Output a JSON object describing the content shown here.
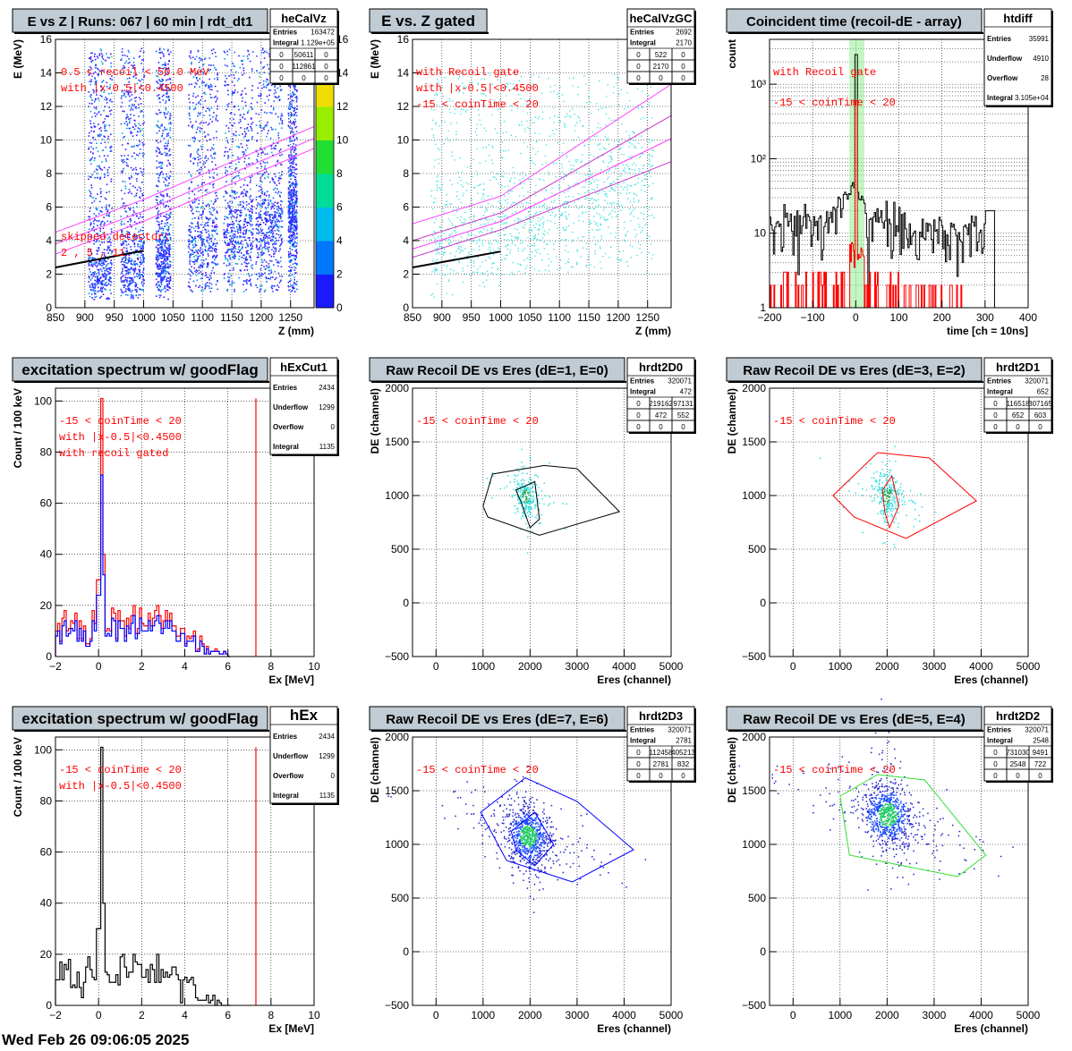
{
  "footer": "Wed Feb 26 09:06:05 2025",
  "colors": {
    "red": "#ff0000",
    "blue": "#0000ff",
    "black": "#000000",
    "magenta": "#ff00ff",
    "green": "#00cc00",
    "title_bg": "#c0cbd3"
  },
  "chart_data": [
    {
      "id": "heCalVz",
      "type": "heatmap",
      "title": "E vs Z | Runs: 067 | 60 min | rdt_dt1",
      "stats_name": "heCalVz",
      "stats": [
        [
          "Entries",
          "163472"
        ],
        [
          "Integral",
          "1.129e+05"
        ]
      ],
      "stats_grid": [
        [
          "0",
          "50611",
          "0"
        ],
        [
          "0",
          "112861",
          "0"
        ],
        [
          "0",
          "0",
          "0"
        ]
      ],
      "xlabel": "Z (mm)",
      "ylabel": "E (MeV)",
      "xlim": [
        850,
        1290
      ],
      "ylim": [
        0,
        16
      ],
      "xticks": [
        850,
        900,
        950,
        1000,
        1050,
        1100,
        1150,
        1200,
        1250
      ],
      "yticks": [
        0,
        2,
        4,
        6,
        8,
        10,
        12,
        14,
        16
      ],
      "colorbar": {
        "min": 0,
        "max": 16,
        "ticks": [
          0,
          2,
          4,
          6,
          8,
          10,
          12,
          14,
          16
        ]
      },
      "annotations": [
        "0.5 < recoil < 50.0 MeV",
        "with |x-0.5|<0.4500",
        "skipped detector:",
        "2 , 5 , 11"
      ],
      "detector_bands": [
        [
          905,
          945
        ],
        [
          960,
          1000
        ],
        [
          1020,
          1045
        ],
        [
          1075,
          1125
        ],
        [
          1135,
          1185
        ],
        [
          1190,
          1235
        ],
        [
          1245,
          1260
        ]
      ]
    },
    {
      "id": "heCalVzGC",
      "type": "scatter",
      "title": "E vs. Z gated",
      "stats_name": "heCalVzGC",
      "stats": [
        [
          "Entries",
          "2692"
        ],
        [
          "Integral",
          "2170"
        ]
      ],
      "stats_grid": [
        [
          "0",
          "522",
          "0"
        ],
        [
          "0",
          "2170",
          "0"
        ],
        [
          "0",
          "0",
          "0"
        ]
      ],
      "xlabel": "Z (mm)",
      "ylabel": "E (MeV)",
      "xlim": [
        850,
        1290
      ],
      "ylim": [
        0,
        16
      ],
      "xticks": [
        850,
        900,
        950,
        1000,
        1050,
        1100,
        1150,
        1200,
        1250
      ],
      "yticks": [
        0,
        2,
        4,
        6,
        8,
        10,
        12,
        14,
        16
      ],
      "annotations": [
        "with Recoil gate",
        "with |x-0.5|<0.4500",
        "-15 < coinTime < 20"
      ]
    },
    {
      "id": "htdiff",
      "type": "line",
      "title": "Coincident time (recoil-dE - array)",
      "stats_name": "htdiff",
      "stats": [
        [
          "Entries",
          "35991"
        ],
        [
          "Underflow",
          "4910"
        ],
        [
          "Overflow",
          "28"
        ],
        [
          "Integral",
          "3.105e+04"
        ]
      ],
      "xlabel": "time [ch = 10ns]",
      "ylabel": "count",
      "xlim": [
        -200,
        400
      ],
      "ylim": [
        1,
        4000
      ],
      "ylog": true,
      "xticks": [
        -200,
        -100,
        0,
        100,
        200,
        300,
        400
      ],
      "yticks": [
        1,
        10,
        100,
        1000
      ],
      "ytick_labels": [
        "1",
        "10",
        "10²",
        "10³"
      ],
      "gate": [
        -15,
        20
      ],
      "annotations": [
        "with Recoil gate",
        "-15 < coinTime < 20"
      ]
    },
    {
      "id": "hExCut1",
      "type": "bar",
      "title": "excitation spectrum w/ goodFlag",
      "stats_name": "hExCut1",
      "stats": [
        [
          "Entries",
          "2434"
        ],
        [
          "Underflow",
          "1299"
        ],
        [
          "Overflow",
          "0"
        ],
        [
          "Integral",
          "1135"
        ]
      ],
      "xlabel": "Ex [MeV]",
      "ylabel": "Count / 100 keV",
      "xlim": [
        -2,
        10
      ],
      "ylim": [
        0,
        105
      ],
      "xticks": [
        -2,
        0,
        2,
        4,
        6,
        8,
        10
      ],
      "yticks": [
        0,
        20,
        40,
        60,
        80,
        100
      ],
      "marker_x": 7.3,
      "annotations": [
        "-15 < coinTime < 20",
        "with |x-0.5|<0.4500",
        "with recoil gated"
      ]
    },
    {
      "id": "hrdt2D0",
      "type": "scatter",
      "title": "Raw Recoil DE vs Eres (dE=1, E=0)",
      "stats_name": "hrdt2D0",
      "stats": [
        [
          "Entries",
          "320071"
        ],
        [
          "Integral",
          "472"
        ]
      ],
      "stats_grid": [
        [
          "0",
          "219162",
          "97131"
        ],
        [
          "0",
          "472",
          "552"
        ],
        [
          "0",
          "0",
          "0"
        ]
      ],
      "xlabel": "Eres (channel)",
      "ylabel": "DE (channel)",
      "xlim": [
        -500,
        5000
      ],
      "ylim": [
        -500,
        2000
      ],
      "xticks": [
        0,
        1000,
        2000,
        3000,
        4000,
        5000
      ],
      "yticks": [
        -500,
        0,
        500,
        1000,
        1500,
        2000
      ],
      "annotations": [
        "-15 < coinTime < 20"
      ],
      "poly": [
        [
          1000,
          900
        ],
        [
          1200,
          1200
        ],
        [
          2300,
          1280
        ],
        [
          3000,
          1250
        ],
        [
          3900,
          850
        ],
        [
          2200,
          630
        ],
        [
          1100,
          800
        ]
      ],
      "poly_inner": [
        [
          1700,
          1050
        ],
        [
          2100,
          1130
        ],
        [
          2200,
          780
        ],
        [
          2000,
          700
        ],
        [
          1800,
          950
        ]
      ],
      "cluster": [
        1900,
        1000
      ],
      "spread": [
        120,
        90
      ],
      "n_points": 260,
      "poly_color": "black"
    },
    {
      "id": "hrdt2D1",
      "type": "scatter",
      "title": "Raw Recoil DE vs Eres (dE=3, E=2)",
      "stats_name": "hrdt2D1",
      "stats": [
        [
          "Entries",
          "320071"
        ],
        [
          "Integral",
          "652"
        ]
      ],
      "stats_grid": [
        [
          "0",
          "116518",
          "307165"
        ],
        [
          "0",
          "652",
          "603"
        ],
        [
          "0",
          "0",
          "0"
        ]
      ],
      "xlabel": "Eres (channel)",
      "ylabel": "DE (channel)",
      "xlim": [
        -500,
        5000
      ],
      "ylim": [
        -500,
        2000
      ],
      "xticks": [
        0,
        1000,
        2000,
        3000,
        4000,
        5000
      ],
      "yticks": [
        -500,
        0,
        500,
        1000,
        1500,
        2000
      ],
      "annotations": [
        "-15 < coinTime < 20"
      ],
      "poly": [
        [
          850,
          1000
        ],
        [
          1800,
          1400
        ],
        [
          2900,
          1350
        ],
        [
          3900,
          950
        ],
        [
          2400,
          600
        ],
        [
          1300,
          800
        ]
      ],
      "poly_inner": [
        [
          1900,
          1050
        ],
        [
          2100,
          1180
        ],
        [
          2250,
          900
        ],
        [
          2050,
          700
        ],
        [
          1950,
          850
        ]
      ],
      "cluster": [
        2000,
        1000
      ],
      "spread": [
        130,
        100
      ],
      "n_points": 300,
      "poly_color": "red"
    },
    {
      "id": "hEx",
      "type": "bar",
      "title": "excitation spectrum w/ goodFlag",
      "stats_name": "hEx",
      "stats": [
        [
          "Entries",
          "2434"
        ],
        [
          "Underflow",
          "1299"
        ],
        [
          "Overflow",
          "0"
        ],
        [
          "Integral",
          "1135"
        ]
      ],
      "xlabel": "Ex [MeV]",
      "ylabel": "Count / 100 keV",
      "xlim": [
        -2,
        10
      ],
      "ylim": [
        0,
        105
      ],
      "xticks": [
        -2,
        0,
        2,
        4,
        6,
        8,
        10
      ],
      "yticks": [
        0,
        20,
        40,
        60,
        80,
        100
      ],
      "marker_x": 7.3,
      "annotations": [
        "-15 < coinTime < 20",
        "with |x-0.5|<0.4500"
      ]
    },
    {
      "id": "hrdt2D3",
      "type": "scatter",
      "title": "Raw Recoil DE vs Eres (dE=7, E=6)",
      "stats_name": "hrdt2D3",
      "stats": [
        [
          "Entries",
          "320071"
        ],
        [
          "Integral",
          "2781"
        ]
      ],
      "stats_grid": [
        [
          "0",
          "112458",
          "405213"
        ],
        [
          "0",
          "2781",
          "832"
        ],
        [
          "0",
          "0",
          "0"
        ]
      ],
      "xlabel": "Eres (channel)",
      "ylabel": "DE (channel)",
      "xlim": [
        -500,
        5000
      ],
      "ylim": [
        -500,
        2000
      ],
      "xticks": [
        0,
        1000,
        2000,
        3000,
        4000,
        5000
      ],
      "yticks": [
        -500,
        0,
        500,
        1000,
        1500,
        2000
      ],
      "annotations": [
        "-15 < coinTime < 20"
      ],
      "poly": [
        [
          950,
          1300
        ],
        [
          1900,
          1620
        ],
        [
          3000,
          1400
        ],
        [
          4200,
          950
        ],
        [
          2900,
          650
        ],
        [
          1500,
          850
        ]
      ],
      "poly_inner": [
        [
          1600,
          1120
        ],
        [
          2100,
          1300
        ],
        [
          2500,
          1000
        ],
        [
          2100,
          800
        ],
        [
          1700,
          950
        ]
      ],
      "cluster": [
        1950,
        1080
      ],
      "spread": [
        220,
        130
      ],
      "n_points": 900,
      "poly_color": "blue"
    },
    {
      "id": "hrdt2D2",
      "type": "scatter",
      "title": "Raw Recoil DE vs Eres (dE=5, E=4)",
      "stats_name": "hrdt2D2",
      "stats": [
        [
          "Entries",
          "320071"
        ],
        [
          "Integral",
          "2548"
        ]
      ],
      "stats_grid": [
        [
          "0",
          "731030",
          "9491"
        ],
        [
          "0",
          "2548",
          "722"
        ],
        [
          "0",
          "0",
          "0"
        ]
      ],
      "xlabel": "Eres (channel)",
      "ylabel": "DE (channel)",
      "xlim": [
        -500,
        5000
      ],
      "ylim": [
        -500,
        2000
      ],
      "xticks": [
        0,
        1000,
        2000,
        3000,
        4000,
        5000
      ],
      "yticks": [
        -500,
        0,
        500,
        1000,
        1500,
        2000
      ],
      "annotations": [
        "-15 < coinTime < 20"
      ],
      "poly": [
        [
          1000,
          1450
        ],
        [
          1800,
          1650
        ],
        [
          2800,
          1600
        ],
        [
          4100,
          900
        ],
        [
          3500,
          700
        ],
        [
          1200,
          900
        ]
      ],
      "cluster": [
        2000,
        1280
      ],
      "spread": [
        260,
        140
      ],
      "n_points": 900,
      "poly_color": "green"
    }
  ]
}
